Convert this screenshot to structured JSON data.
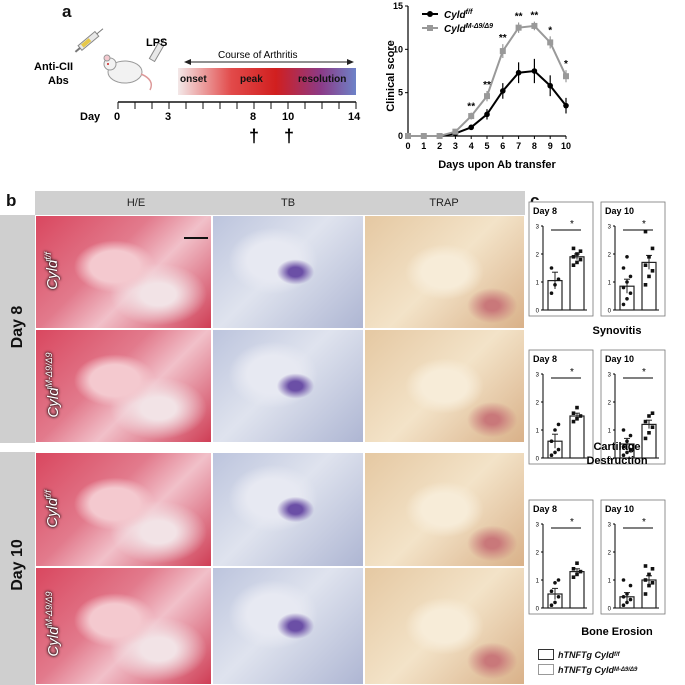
{
  "panel_a": {
    "letter": "a",
    "timeline": {
      "antibody_label_1": "Anti-CII",
      "antibody_label_2": "Abs",
      "lps_label": "LPS",
      "course_label": "Course of Arthritis",
      "phase_onset": "onset",
      "phase_peak": "peak",
      "phase_resolution": "resolution",
      "day_label": "Day",
      "ticks": [
        "0",
        "3",
        "8",
        "10",
        "14"
      ],
      "dagger": "†"
    }
  },
  "panel_b": {
    "letter": "b",
    "columns": [
      "H/E",
      "TB",
      "TRAP"
    ],
    "groups": [
      {
        "label": "Day 8",
        "rows": [
          {
            "base": "Cyld",
            "sup": "f/f"
          },
          {
            "base": "Cyld",
            "sup": "M-Δ9/Δ9"
          }
        ]
      },
      {
        "label": "Day 10",
        "rows": [
          {
            "base": "Cyld",
            "sup": "f/f"
          },
          {
            "base": "Cyld",
            "sup": "M-Δ9/Δ9"
          }
        ]
      }
    ]
  },
  "panel_c": {
    "letter": "c",
    "legend": [
      {
        "base": "hTNFTg Cyld",
        "sup": "f/f",
        "fill": "#333333"
      },
      {
        "base": "hTNFTg Cyld",
        "sup": "M-Δ9/Δ9",
        "fill": "#ffffff"
      }
    ]
  },
  "chart_data": [
    {
      "type": "line",
      "title": "",
      "xlabel": "Days upon Ab transfer",
      "ylabel": "Clinical score",
      "x": [
        0,
        1,
        2,
        3,
        4,
        5,
        6,
        7,
        8,
        9,
        10
      ],
      "xlim": [
        0,
        10
      ],
      "ylim": [
        0,
        15
      ],
      "yticks": [
        0,
        5,
        10,
        15
      ],
      "series": [
        {
          "name": "Cyld f/f",
          "color": "#000000",
          "values": [
            0,
            0,
            0,
            0.3,
            1.0,
            2.5,
            5.2,
            7.3,
            7.5,
            5.8,
            3.5
          ],
          "errors": [
            0,
            0,
            0,
            0.1,
            0.3,
            0.6,
            0.9,
            1.2,
            1.4,
            1.2,
            0.9
          ]
        },
        {
          "name": "Cyld M-Δ9/Δ9",
          "color": "#999999",
          "values": [
            0,
            0,
            0,
            0.5,
            2.3,
            4.6,
            9.8,
            12.5,
            12.7,
            10.8,
            6.9
          ],
          "errors": [
            0,
            0,
            0,
            0.1,
            0.4,
            0.6,
            0.8,
            0.6,
            0.5,
            0.7,
            0.7
          ]
        }
      ],
      "annotations": [
        {
          "x": 4,
          "text": "**"
        },
        {
          "x": 5,
          "text": "**"
        },
        {
          "x": 6,
          "text": "**"
        },
        {
          "x": 7,
          "text": "**"
        },
        {
          "x": 8,
          "text": "**"
        },
        {
          "x": 9,
          "text": "*"
        },
        {
          "x": 10,
          "text": "*"
        }
      ]
    },
    {
      "type": "bar",
      "title": "Day 8",
      "group": "Synovitis",
      "categories": [
        "hTNFTg Cyld f/f",
        "hTNFTg Cyld M-Δ9/Δ9"
      ],
      "values": [
        1.05,
        1.9
      ],
      "errors": [
        0.3,
        0.1
      ],
      "points": [
        [
          0.6,
          0.9,
          1.1,
          1.5
        ],
        [
          1.6,
          1.7,
          1.8,
          1.9,
          2.0,
          2.1,
          2.2
        ]
      ],
      "ylim": [
        0,
        3
      ],
      "sig": "*"
    },
    {
      "type": "bar",
      "title": "Day 10",
      "group": "Synovitis",
      "categories": [
        "hTNFTg Cyld f/f",
        "hTNFTg Cyld M-Δ9/Δ9"
      ],
      "values": [
        0.85,
        1.7
      ],
      "errors": [
        0.25,
        0.25
      ],
      "points": [
        [
          0.2,
          0.4,
          0.6,
          0.8,
          1.0,
          1.2,
          1.5,
          1.9
        ],
        [
          0.9,
          1.2,
          1.4,
          1.6,
          1.9,
          2.2,
          2.8
        ]
      ],
      "ylim": [
        0,
        3
      ],
      "sig": "*"
    },
    {
      "type": "bar",
      "title": "Day 8",
      "group": "Cartilage Destruction",
      "categories": [
        "hTNFTg Cyld f/f",
        "hTNFTg Cyld M-Δ9/Δ9"
      ],
      "values": [
        0.6,
        1.5
      ],
      "errors": [
        0.25,
        0.1
      ],
      "points": [
        [
          0.1,
          0.2,
          0.3,
          0.6,
          1.0,
          1.2
        ],
        [
          1.3,
          1.4,
          1.5,
          1.6,
          1.8
        ]
      ],
      "ylim": [
        0,
        3
      ],
      "sig": "*"
    },
    {
      "type": "bar",
      "title": "Day 10",
      "group": "Cartilage Destruction",
      "categories": [
        "hTNFTg Cyld f/f",
        "hTNFTg Cyld M-Δ9/Δ9"
      ],
      "values": [
        0.5,
        1.2
      ],
      "errors": [
        0.2,
        0.15
      ],
      "points": [
        [
          0.1,
          0.2,
          0.3,
          0.4,
          0.6,
          0.8,
          1.0
        ],
        [
          0.7,
          0.9,
          1.1,
          1.3,
          1.5,
          1.6
        ]
      ],
      "ylim": [
        0,
        3
      ],
      "sig": "*"
    },
    {
      "type": "bar",
      "title": "Day 8",
      "group": "Bone Erosion",
      "categories": [
        "hTNFTg Cyld f/f",
        "hTNFTg Cyld M-Δ9/Δ9"
      ],
      "values": [
        0.5,
        1.3
      ],
      "errors": [
        0.2,
        0.1
      ],
      "points": [
        [
          0.1,
          0.2,
          0.4,
          0.6,
          0.9,
          1.0
        ],
        [
          1.1,
          1.2,
          1.3,
          1.4,
          1.6
        ]
      ],
      "ylim": [
        0,
        3
      ],
      "sig": "*"
    },
    {
      "type": "bar",
      "title": "Day 10",
      "group": "Bone Erosion",
      "categories": [
        "hTNFTg Cyld f/f",
        "hTNFTg Cyld M-Δ9/Δ9"
      ],
      "values": [
        0.4,
        1.0
      ],
      "errors": [
        0.15,
        0.15
      ],
      "points": [
        [
          0.1,
          0.2,
          0.3,
          0.4,
          0.5,
          0.8,
          1.0
        ],
        [
          0.5,
          0.8,
          0.9,
          1.0,
          1.2,
          1.4,
          1.5
        ]
      ],
      "ylim": [
        0,
        3
      ],
      "sig": "*"
    }
  ],
  "panel_c_titles": [
    "Synovitis",
    "Cartilage",
    "Destruction",
    "Bone Erosion"
  ]
}
